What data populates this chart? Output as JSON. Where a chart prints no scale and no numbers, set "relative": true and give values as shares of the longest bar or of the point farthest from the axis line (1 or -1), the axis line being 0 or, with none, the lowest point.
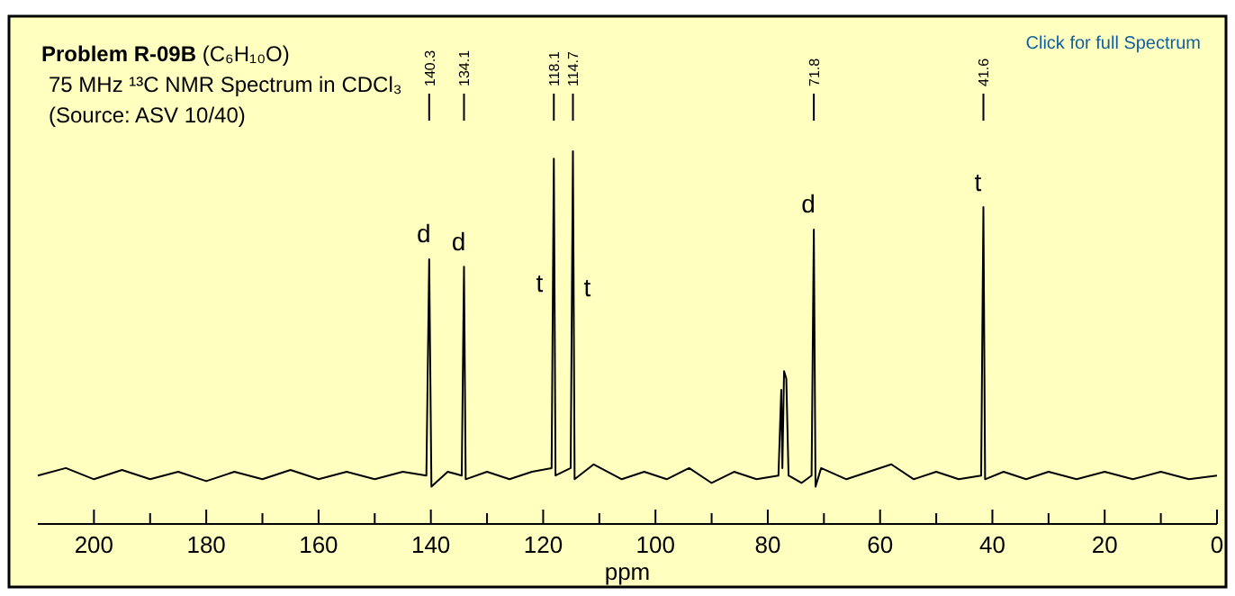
{
  "chart_data": {
    "type": "line",
    "title": "Problem R-09B (C₆H₁₀O)",
    "subtitle": "75 MHz ¹³C NMR Spectrum in CDCl₃",
    "xlabel": "ppm",
    "relative": true,
    "line_style": "solid",
    "xlim": [
      210,
      0
    ],
    "xticks": [
      200,
      {
        "value": 190,
        "label": null
      },
      180,
      {
        "value": 170,
        "label": null
      },
      160,
      {
        "value": 150,
        "label": null
      },
      140,
      {
        "value": 130,
        "label": null
      },
      120,
      {
        "value": 110,
        "label": null
      },
      100,
      {
        "value": 90,
        "label": null
      },
      80,
      {
        "value": 70,
        "label": null
      },
      60,
      {
        "value": 50,
        "label": null
      },
      40,
      {
        "value": 30,
        "label": null
      },
      20,
      {
        "value": 10,
        "label": null
      },
      0
    ],
    "series": [
      {
        "color": "#000000",
        "x": [
          210,
          205,
          200,
          195,
          190,
          185,
          180,
          175,
          170,
          165,
          160,
          155,
          150,
          145,
          140.8,
          140.3,
          139.9,
          137,
          134.5,
          134.1,
          133.8,
          130,
          126,
          122,
          118.5,
          118.1,
          117.8,
          115.1,
          114.7,
          114.4,
          111,
          106,
          102,
          98,
          94,
          90,
          86,
          82,
          78.1,
          77.6,
          77.4,
          77.1,
          76.7,
          76.3,
          74,
          72.2,
          71.8,
          71.5,
          70.5,
          66,
          62,
          58,
          54,
          50,
          46,
          42,
          41.6,
          41.3,
          38,
          34,
          30,
          25,
          20,
          15,
          10,
          5,
          0
        ],
        "values": [
          0.13,
          0.15,
          0.12,
          0.145,
          0.12,
          0.14,
          0.115,
          0.14,
          0.12,
          0.145,
          0.12,
          0.14,
          0.12,
          0.14,
          0.13,
          0.71,
          0.1,
          0.14,
          0.13,
          0.69,
          0.12,
          0.14,
          0.12,
          0.14,
          0.15,
          0.98,
          0.13,
          0.15,
          1,
          0.12,
          0.16,
          0.12,
          0.14,
          0.12,
          0.15,
          0.11,
          0.14,
          0.12,
          0.13,
          0.36,
          0.15,
          0.41,
          0.39,
          0.13,
          0.11,
          0.13,
          0.79,
          0.1,
          0.15,
          0.12,
          0.14,
          0.16,
          0.12,
          0.14,
          0.12,
          0.13,
          0.85,
          0.12,
          0.14,
          0.12,
          0.14,
          0.12,
          0.14,
          0.12,
          0.14,
          0.12,
          0.13
        ]
      }
    ],
    "annotations": [
      "(Source: ASV 10/40)",
      "Click for full Spectrum",
      {
        "text": "140.3",
        "x": 140.3
      },
      {
        "text": "134.1",
        "x": 134.1
      },
      {
        "text": "118.1",
        "x": 118.1
      },
      {
        "text": "114.7",
        "x": 114.7
      },
      {
        "text": "71.8",
        "x": 71.8
      },
      {
        "text": "41.6",
        "x": 41.6
      },
      {
        "text": "d",
        "x": 140.3,
        "y": 0.71
      },
      {
        "text": "d",
        "x": 134.1,
        "y": 0.69
      },
      {
        "text": "t",
        "x": 118.1,
        "y": 0.64
      },
      {
        "text": "t",
        "x": 114.7,
        "y": 0.63
      },
      {
        "text": "d",
        "x": 71.8,
        "y": 0.79
      },
      {
        "text": "t",
        "x": 41.6,
        "y": 0.85
      }
    ]
  }
}
